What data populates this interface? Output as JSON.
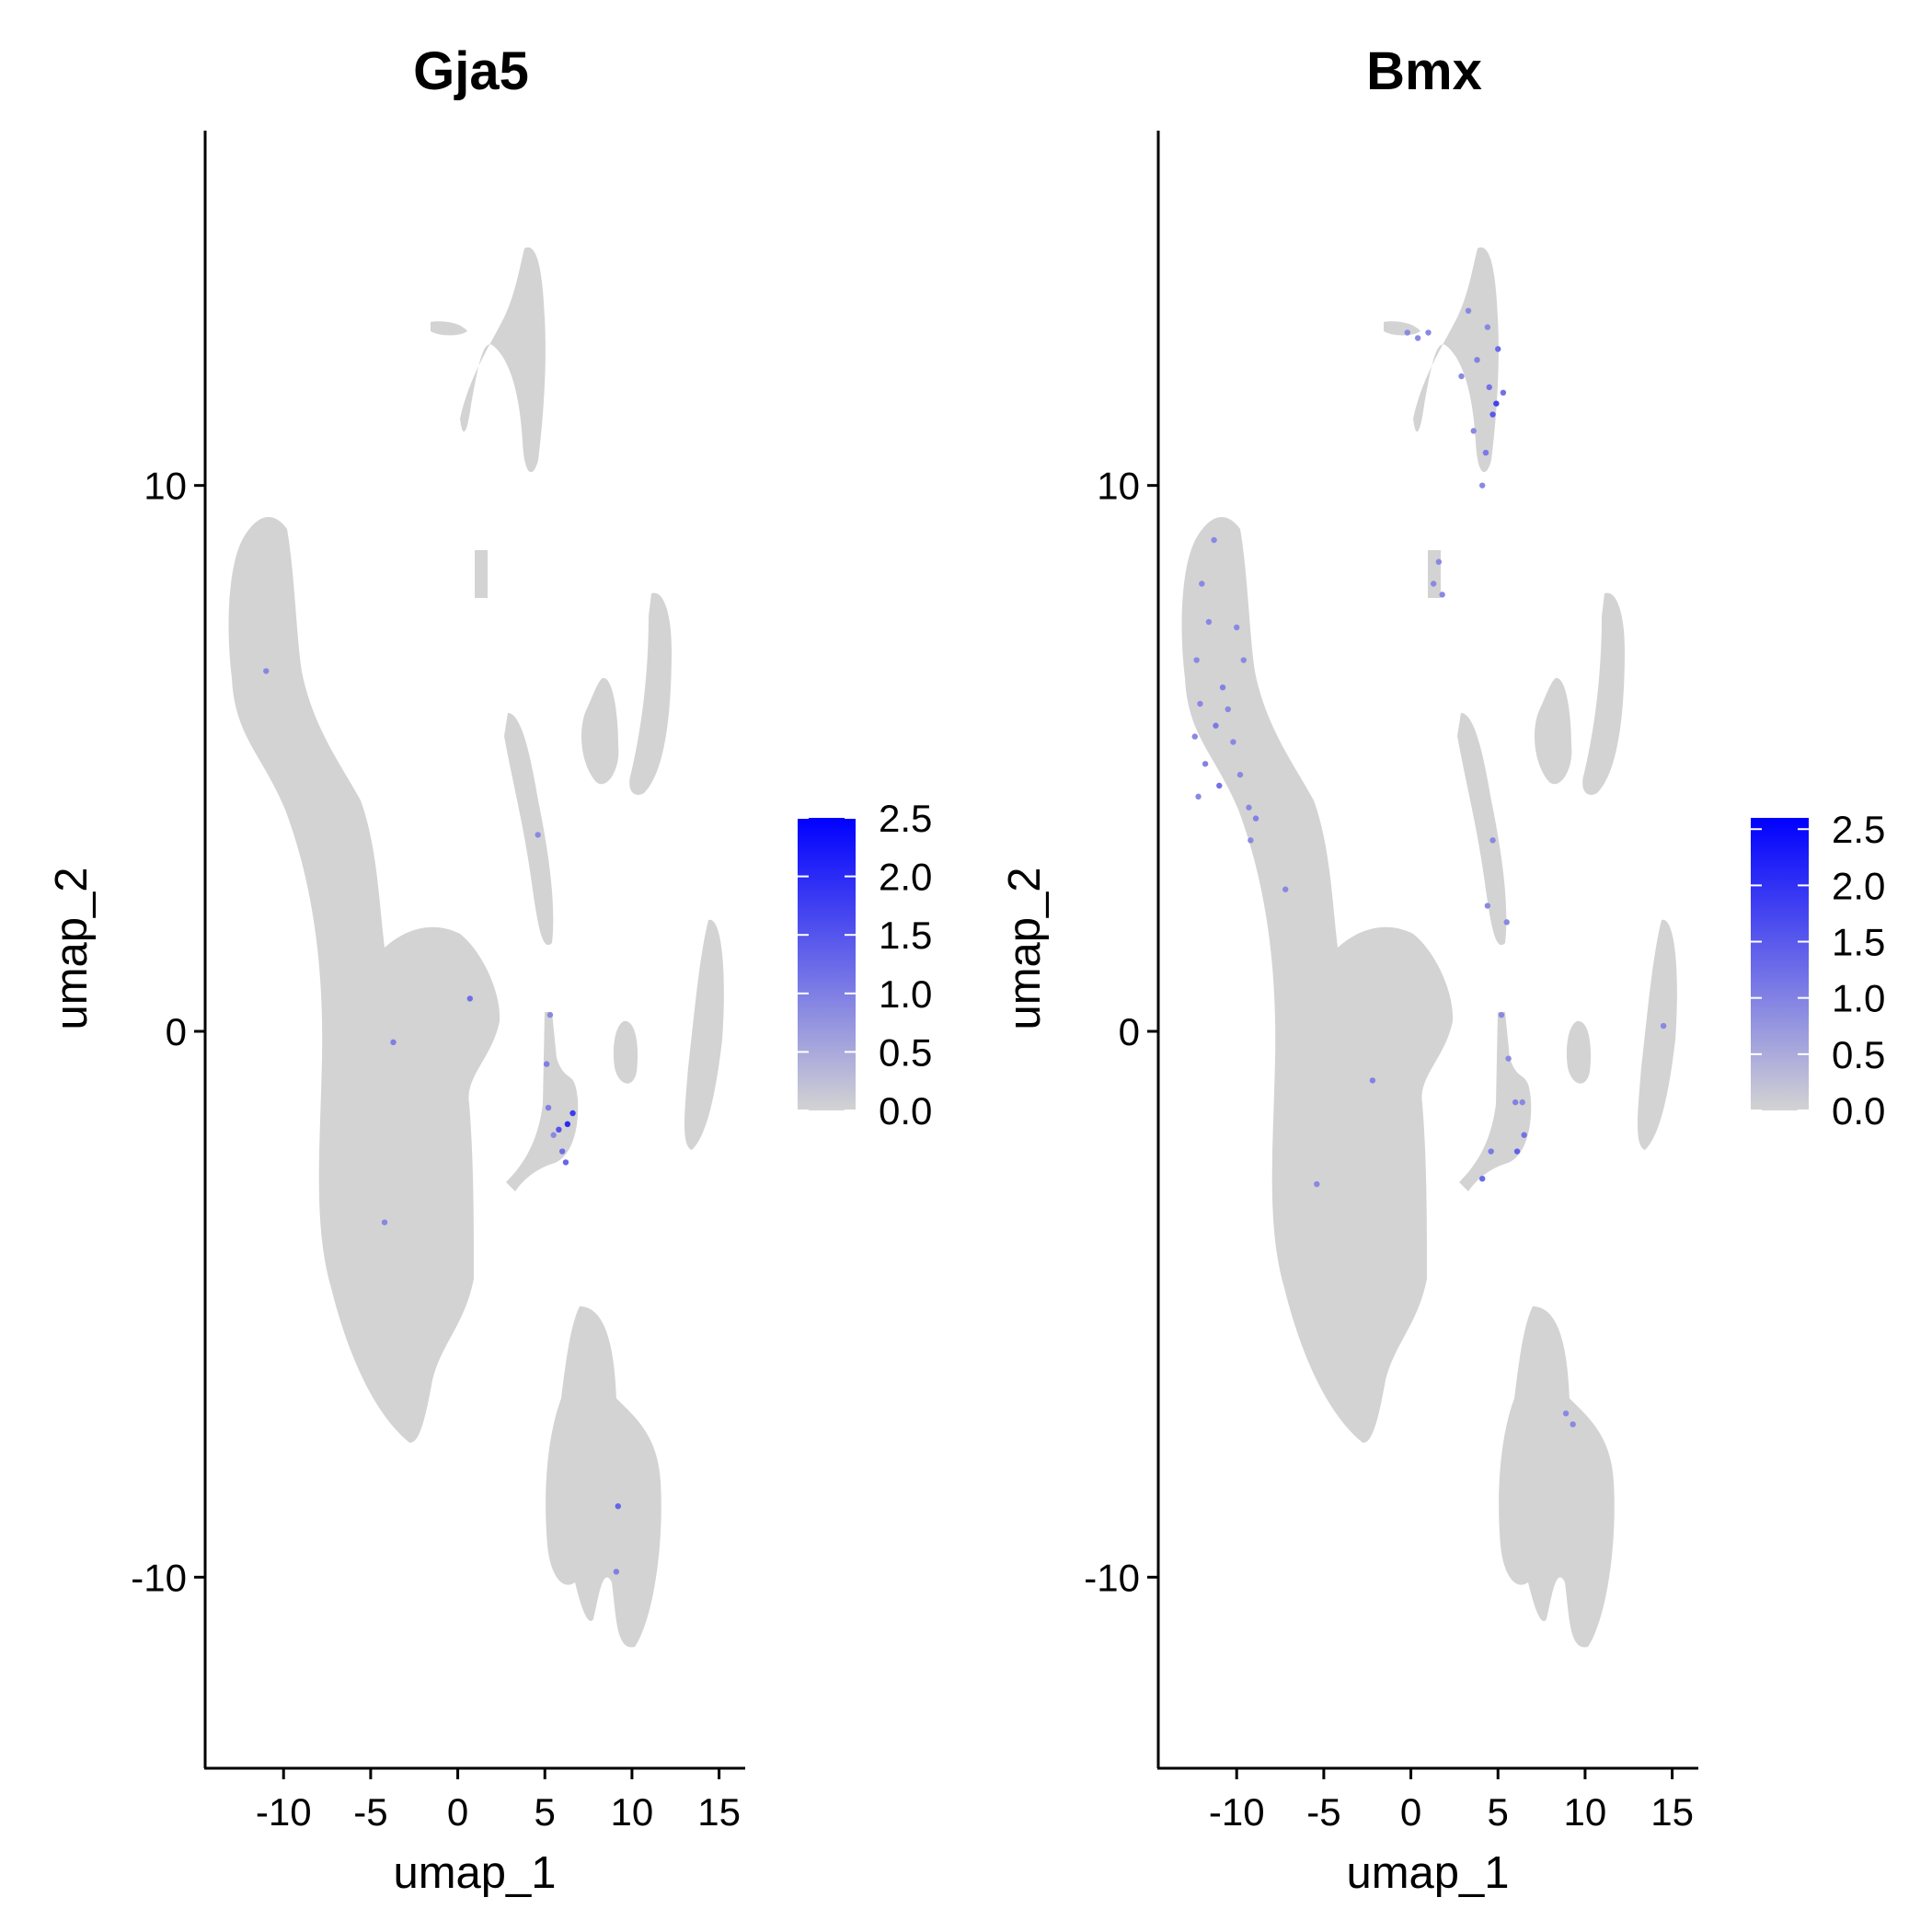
{
  "chart_data": [
    {
      "type": "scatter",
      "title": "Gja5",
      "xlabel": "umap_1",
      "ylabel": "umap_2",
      "xlim": [
        -14.5,
        16.5
      ],
      "ylim": [
        -13.5,
        16.5
      ],
      "xticks": [
        -10,
        -5,
        0,
        5,
        10,
        15
      ],
      "yticks": [
        -10,
        0,
        10
      ],
      "xtick_labels": [
        "-10",
        "-5",
        "0",
        "5",
        "10",
        "15"
      ],
      "ytick_labels": [
        "-10",
        "0",
        "10"
      ],
      "grid": false,
      "legend_position": "right",
      "colorbar": {
        "range": [
          0.0,
          2.5
        ],
        "ticks": [
          0.0,
          0.5,
          1.0,
          1.5,
          2.0,
          2.5
        ],
        "tick_labels": [
          "0.0",
          "0.5",
          "1.0",
          "1.5",
          "2.0",
          "2.5"
        ],
        "low_color": "#d3d3d3",
        "high_color": "#0000ff"
      },
      "background_color": "#d3d3d3",
      "expressing_cells": [
        {
          "x": 5.2,
          "y": -1.4,
          "value": 1.0
        },
        {
          "x": 5.8,
          "y": -1.8,
          "value": 1.5
        },
        {
          "x": 6.3,
          "y": -1.7,
          "value": 2.0
        },
        {
          "x": 6.0,
          "y": -2.2,
          "value": 1.2
        },
        {
          "x": 5.5,
          "y": -1.9,
          "value": 0.8
        },
        {
          "x": 5.1,
          "y": -0.6,
          "value": 1.0
        },
        {
          "x": 5.3,
          "y": 0.3,
          "value": 0.7
        },
        {
          "x": 6.6,
          "y": -1.5,
          "value": 1.8
        },
        {
          "x": 6.2,
          "y": -2.4,
          "value": 1.3
        },
        {
          "x": 0.7,
          "y": 0.6,
          "value": 1.2
        },
        {
          "x": -3.7,
          "y": -0.2,
          "value": 1.0
        },
        {
          "x": -4.2,
          "y": -3.5,
          "value": 0.9
        },
        {
          "x": 9.2,
          "y": -8.7,
          "value": 1.3
        },
        {
          "x": 9.1,
          "y": -9.9,
          "value": 1.0
        },
        {
          "x": -11.0,
          "y": 6.6,
          "value": 0.9
        },
        {
          "x": 4.6,
          "y": 3.6,
          "value": 0.8
        }
      ]
    },
    {
      "type": "scatter",
      "title": "Bmx",
      "xlabel": "umap_1",
      "ylabel": "umap_2",
      "xlim": [
        -14.5,
        16.5
      ],
      "ylim": [
        -13.5,
        16.5
      ],
      "xticks": [
        -10,
        -5,
        0,
        5,
        10,
        15
      ],
      "yticks": [
        -10,
        0,
        10
      ],
      "xtick_labels": [
        "-10",
        "-5",
        "0",
        "5",
        "10",
        "15"
      ],
      "ytick_labels": [
        "-10",
        "0",
        "10"
      ],
      "grid": false,
      "legend_position": "right",
      "colorbar": {
        "range": [
          0.0,
          2.6
        ],
        "ticks": [
          0.0,
          0.5,
          1.0,
          1.5,
          2.0,
          2.5
        ],
        "tick_labels": [
          "0.0",
          "0.5",
          "1.0",
          "1.5",
          "2.0",
          "2.5"
        ],
        "low_color": "#d3d3d3",
        "high_color": "#0000ff"
      },
      "background_color": "#d3d3d3",
      "expressing_cells": [
        {
          "x": 3.3,
          "y": 13.2,
          "value": 0.8
        },
        {
          "x": 3.8,
          "y": 12.3,
          "value": 1.0
        },
        {
          "x": 4.5,
          "y": 11.8,
          "value": 1.2
        },
        {
          "x": 4.7,
          "y": 11.3,
          "value": 1.5
        },
        {
          "x": 4.3,
          "y": 10.6,
          "value": 1.1
        },
        {
          "x": 4.1,
          "y": 10.0,
          "value": 0.9
        },
        {
          "x": 5.0,
          "y": 12.5,
          "value": 1.3
        },
        {
          "x": 4.9,
          "y": 11.5,
          "value": 1.8
        },
        {
          "x": 3.6,
          "y": 11.0,
          "value": 0.8
        },
        {
          "x": 2.9,
          "y": 12.0,
          "value": 0.7
        },
        {
          "x": 4.4,
          "y": 12.9,
          "value": 0.9
        },
        {
          "x": 5.3,
          "y": 11.7,
          "value": 1.2
        },
        {
          "x": 1.0,
          "y": 12.8,
          "value": 0.6
        },
        {
          "x": -0.2,
          "y": 12.8,
          "value": 0.6
        },
        {
          "x": 0.4,
          "y": 12.7,
          "value": 0.8
        },
        {
          "x": 1.6,
          "y": 8.6,
          "value": 0.8
        },
        {
          "x": 1.3,
          "y": 8.2,
          "value": 0.6
        },
        {
          "x": 1.8,
          "y": 8.0,
          "value": 0.7
        },
        {
          "x": -11.3,
          "y": 9.0,
          "value": 0.9
        },
        {
          "x": -12.0,
          "y": 8.2,
          "value": 0.7
        },
        {
          "x": -11.6,
          "y": 7.5,
          "value": 0.8
        },
        {
          "x": -12.3,
          "y": 6.8,
          "value": 0.9
        },
        {
          "x": -10.8,
          "y": 6.3,
          "value": 1.0
        },
        {
          "x": -12.1,
          "y": 6.0,
          "value": 0.8
        },
        {
          "x": -11.2,
          "y": 5.6,
          "value": 1.1
        },
        {
          "x": -12.4,
          "y": 5.4,
          "value": 0.7
        },
        {
          "x": -10.2,
          "y": 5.3,
          "value": 0.8
        },
        {
          "x": -11.8,
          "y": 4.9,
          "value": 1.0
        },
        {
          "x": -9.8,
          "y": 4.7,
          "value": 0.9
        },
        {
          "x": -11.0,
          "y": 4.5,
          "value": 1.2
        },
        {
          "x": -9.3,
          "y": 4.1,
          "value": 0.8
        },
        {
          "x": -10.5,
          "y": 5.9,
          "value": 0.7
        },
        {
          "x": -8.9,
          "y": 3.9,
          "value": 1.0
        },
        {
          "x": -9.6,
          "y": 6.8,
          "value": 0.6
        },
        {
          "x": -10.0,
          "y": 7.4,
          "value": 0.7
        },
        {
          "x": -12.2,
          "y": 4.3,
          "value": 0.8
        },
        {
          "x": -9.2,
          "y": 3.5,
          "value": 0.7
        },
        {
          "x": -7.2,
          "y": 2.6,
          "value": 0.7
        },
        {
          "x": -2.2,
          "y": -0.9,
          "value": 1.0
        },
        {
          "x": -5.4,
          "y": -2.8,
          "value": 0.7
        },
        {
          "x": 4.7,
          "y": 3.5,
          "value": 0.8
        },
        {
          "x": 5.5,
          "y": 2.0,
          "value": 0.7
        },
        {
          "x": 5.2,
          "y": 0.3,
          "value": 0.9
        },
        {
          "x": 5.6,
          "y": -0.5,
          "value": 0.8
        },
        {
          "x": 6.0,
          "y": -1.3,
          "value": 1.0
        },
        {
          "x": 6.5,
          "y": -1.9,
          "value": 1.2
        },
        {
          "x": 6.1,
          "y": -2.2,
          "value": 1.4
        },
        {
          "x": 4.6,
          "y": -2.2,
          "value": 1.1
        },
        {
          "x": 4.1,
          "y": -2.7,
          "value": 1.3
        },
        {
          "x": 6.4,
          "y": -1.3,
          "value": 0.9
        },
        {
          "x": 8.9,
          "y": -7.0,
          "value": 0.8
        },
        {
          "x": 9.3,
          "y": -7.2,
          "value": 0.9
        },
        {
          "x": 14.5,
          "y": 0.1,
          "value": 0.7
        },
        {
          "x": 4.4,
          "y": 2.3,
          "value": 0.6
        }
      ]
    }
  ]
}
